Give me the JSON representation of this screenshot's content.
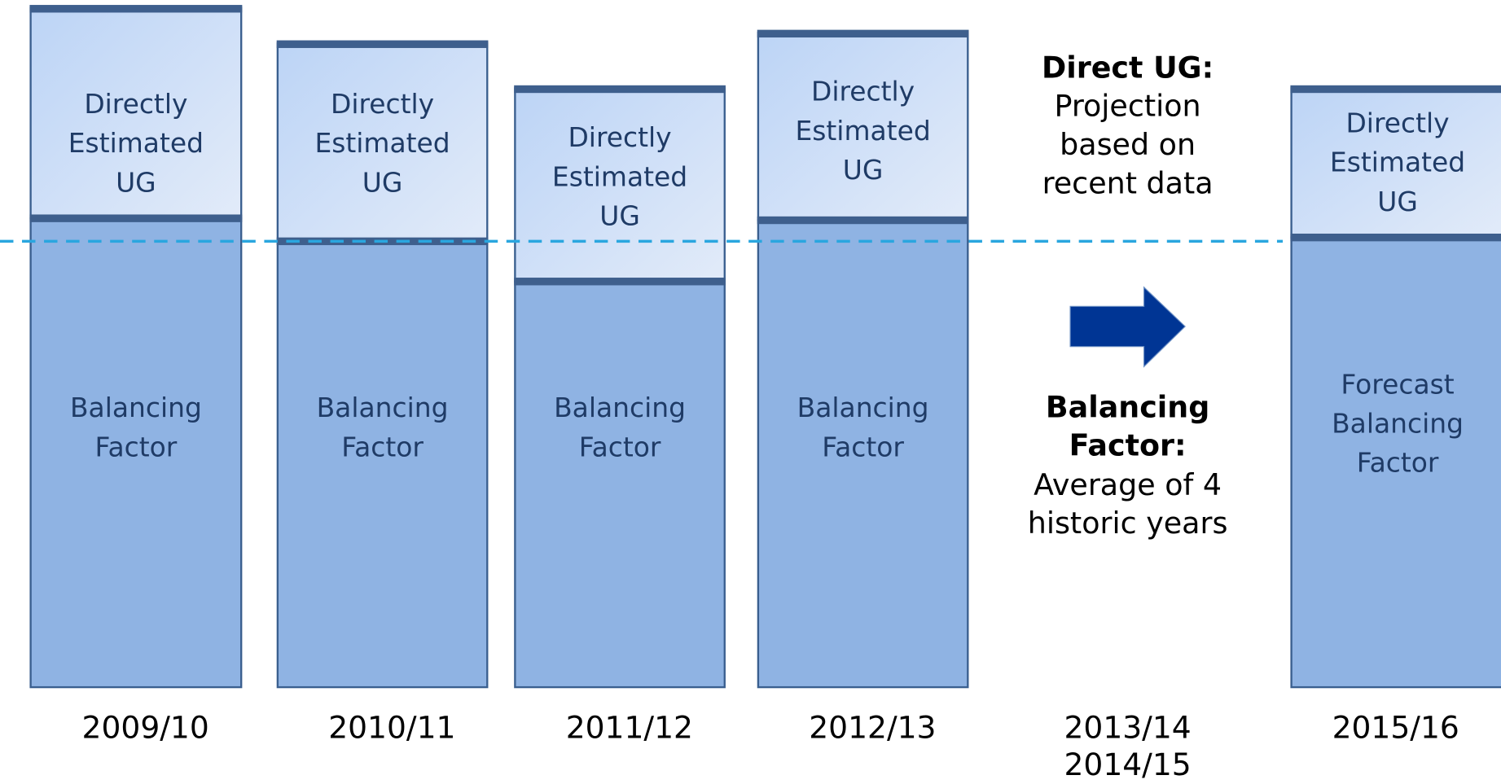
{
  "columns": [
    {
      "top_label": [
        "Directly",
        "Estimated",
        "UG"
      ],
      "bottom_label": [
        "Balancing",
        "Factor"
      ],
      "year": "2009/10"
    },
    {
      "top_label": [
        "Directly",
        "Estimated",
        "UG"
      ],
      "bottom_label": [
        "Balancing",
        "Factor"
      ],
      "year": "2010/11"
    },
    {
      "top_label": [
        "Directly",
        "Estimated",
        "UG"
      ],
      "bottom_label": [
        "Balancing",
        "Factor"
      ],
      "year": "2011/12"
    },
    {
      "top_label": [
        "Directly",
        "Estimated",
        "UG"
      ],
      "bottom_label": [
        "Balancing",
        "Factor"
      ],
      "year": "2012/13"
    },
    {
      "top_label": [
        "Directly",
        "Estimated",
        "UG"
      ],
      "bottom_label": [
        "Forecast",
        "Balancing",
        "Factor"
      ],
      "year": "2015/16"
    }
  ],
  "middle": {
    "years": [
      "2013/14",
      "2014/15"
    ],
    "direct_ug": {
      "heading": "Direct UG:",
      "text": [
        "Projection",
        "based on",
        "recent data"
      ]
    },
    "balancing_factor": {
      "heading": [
        "Balancing",
        "Factor:"
      ],
      "text": [
        "Average of 4",
        "historic years"
      ]
    }
  }
}
